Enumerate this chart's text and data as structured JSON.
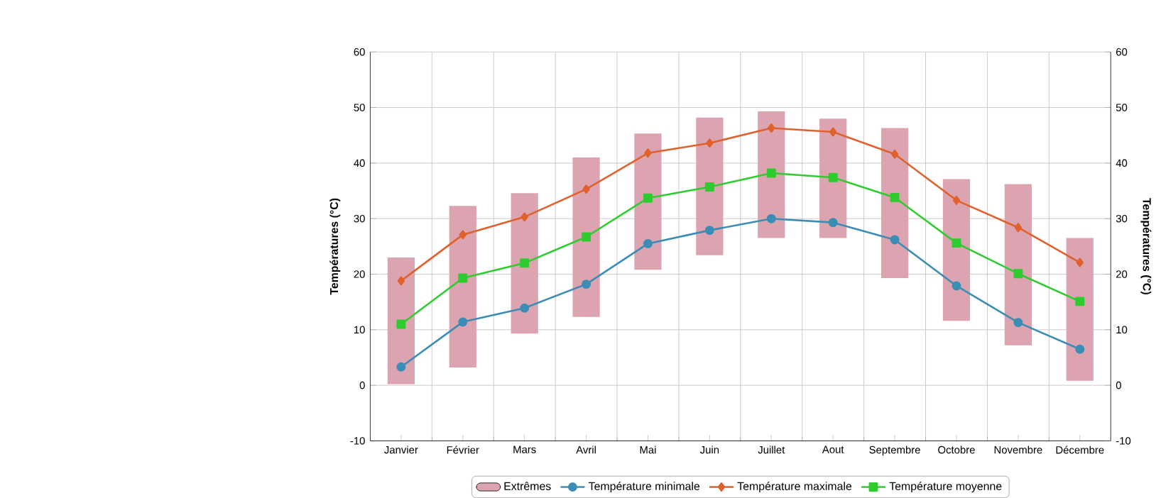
{
  "chart_data": {
    "type": "line",
    "ylabel": "Températures (°C)",
    "y2label": "Températures (°C)",
    "categories": [
      "Janvier",
      "Février",
      "Mars",
      "Avril",
      "Mai",
      "Juin",
      "Juillet",
      "Aout",
      "Septembre",
      "Octobre",
      "Novembre",
      "Décembre"
    ],
    "series": [
      {
        "name": "Extrêmes",
        "type": "bar",
        "color": "#dca4b0",
        "base": [
          0.2,
          3.2,
          9.3,
          12.3,
          20.8,
          23.4,
          26.5,
          26.5,
          19.3,
          11.6,
          7.2,
          0.8
        ],
        "values": [
          22.8,
          29.1,
          25.3,
          28.7,
          24.5,
          24.8,
          22.8,
          21.5,
          27,
          25.5,
          29,
          25.7
        ]
      },
      {
        "name": "Température minimale",
        "color": "#3b8db5",
        "marker": "circle",
        "values": [
          3.3,
          11.4,
          13.9,
          18.2,
          25.5,
          27.9,
          30,
          29.3,
          26.2,
          17.9,
          11.3,
          6.5
        ]
      },
      {
        "name": "Température maximale",
        "color": "#e0612c",
        "marker": "diamond",
        "values": [
          18.8,
          27.1,
          30.3,
          35.3,
          41.8,
          43.6,
          46.3,
          45.6,
          41.6,
          33.3,
          28.4,
          22.1
        ]
      },
      {
        "name": "Température moyenne",
        "color": "#2ecc2e",
        "marker": "square",
        "values": [
          11,
          19.3,
          22,
          26.7,
          33.7,
          35.7,
          38.2,
          37.4,
          33.8,
          25.6,
          20.1,
          15.1
        ]
      }
    ],
    "ylim": [
      -10,
      60
    ],
    "yticks": [
      -10,
      0,
      10,
      20,
      30,
      40,
      50,
      60
    ],
    "y2lim": [
      -10,
      60
    ],
    "y2ticks": [
      -10,
      0,
      10,
      20,
      30,
      40,
      50,
      60
    ],
    "grid": true,
    "legend": "bottom"
  }
}
